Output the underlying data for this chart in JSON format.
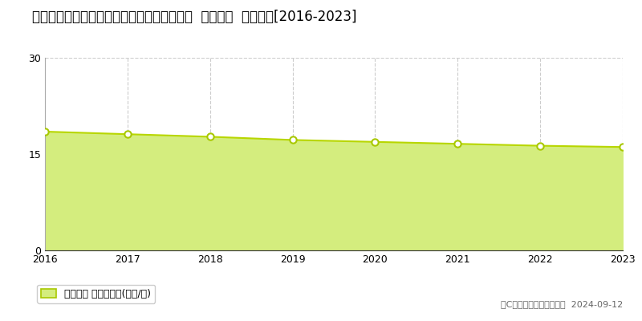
{
  "title": "広峳県呉市音戸町北隠渡１丁目６ﾙ５番２外  地価公示  地価推移[2016-2023]",
  "years": [
    2016,
    2017,
    2018,
    2019,
    2020,
    2021,
    2022,
    2023
  ],
  "values": [
    18.5,
    18.1,
    17.7,
    17.2,
    16.9,
    16.6,
    16.3,
    16.1
  ],
  "ylim": [
    0,
    30
  ],
  "yticks": [
    0,
    15,
    30
  ],
  "fill_color": "#d4ed7e",
  "line_color": "#b8d600",
  "marker_facecolor": "#ffffff",
  "marker_edgecolor": "#a8c800",
  "grid_color": "#cccccc",
  "bg_color": "#ffffff",
  "legend_label": "地価公示 平均坪単価(万円/坪)",
  "copyright_text": "（C）土地価格ドットコム  2024-09-12",
  "title_fontsize": 12,
  "axis_fontsize": 9,
  "legend_fontsize": 9,
  "copyright_fontsize": 8
}
